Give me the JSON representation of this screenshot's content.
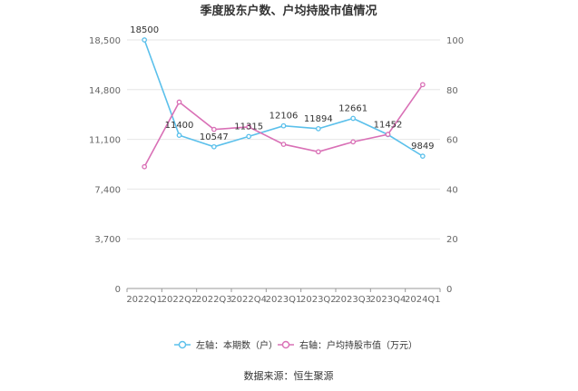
{
  "chart_data": {
    "type": "line",
    "title": "季度股东户数、户均持股市值情况",
    "categories": [
      "2022Q1",
      "2022Q2",
      "2022Q3",
      "2022Q4",
      "2023Q1",
      "2023Q2",
      "2023Q3",
      "2023Q4",
      "2024Q1"
    ],
    "left_axis": {
      "ticks": [
        "0",
        "3,700",
        "7,400",
        "11,100",
        "14,800",
        "18,500"
      ],
      "ylim": [
        0,
        18500
      ]
    },
    "right_axis": {
      "ticks": [
        "0",
        "20",
        "40",
        "60",
        "80",
        "100"
      ],
      "ylim": [
        0,
        100
      ]
    },
    "series": [
      {
        "name": "左轴：本期数（户）",
        "axis": "left",
        "color": "#5bc0eb",
        "values": [
          18500,
          11400,
          10547,
          11315,
          12106,
          11894,
          12661,
          11452,
          9849
        ],
        "labels": [
          "18500",
          "11400",
          "10547",
          "11315",
          "12106",
          "11894",
          "12661",
          "11452",
          "9849"
        ]
      },
      {
        "name": "右轴：户均持股市值（万元）",
        "axis": "right",
        "color": "#d970b6",
        "values": [
          49,
          75,
          64,
          65,
          58,
          55,
          59,
          62,
          82
        ]
      }
    ],
    "grid": true,
    "legend_position": "bottom"
  },
  "source": "数据来源：恒生聚源"
}
